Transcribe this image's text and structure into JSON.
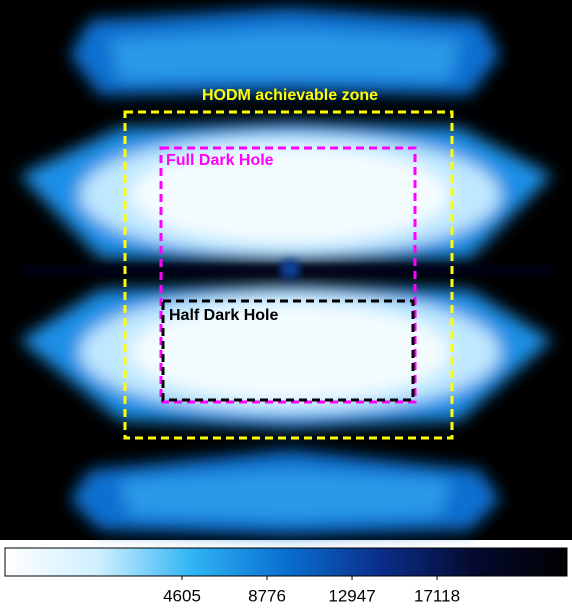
{
  "chart_data": {
    "type": "heatmap",
    "annotations": [
      {
        "label": "HODM achievable zone",
        "color": "#ffff00"
      },
      {
        "label": "Full Dark Hole",
        "color": "#ff00ff"
      },
      {
        "label": "Half Dark Hole",
        "color": "#000000"
      }
    ],
    "clim": [
      -4080,
      23495
    ],
    "cticks": [
      4605,
      8776,
      12947,
      17118
    ],
    "colormap": [
      "#ffffff",
      "#cfefff",
      "#2fb4f4",
      "#0a6fd0",
      "#0a2f8a",
      "#050a30",
      "#000000"
    ]
  }
}
